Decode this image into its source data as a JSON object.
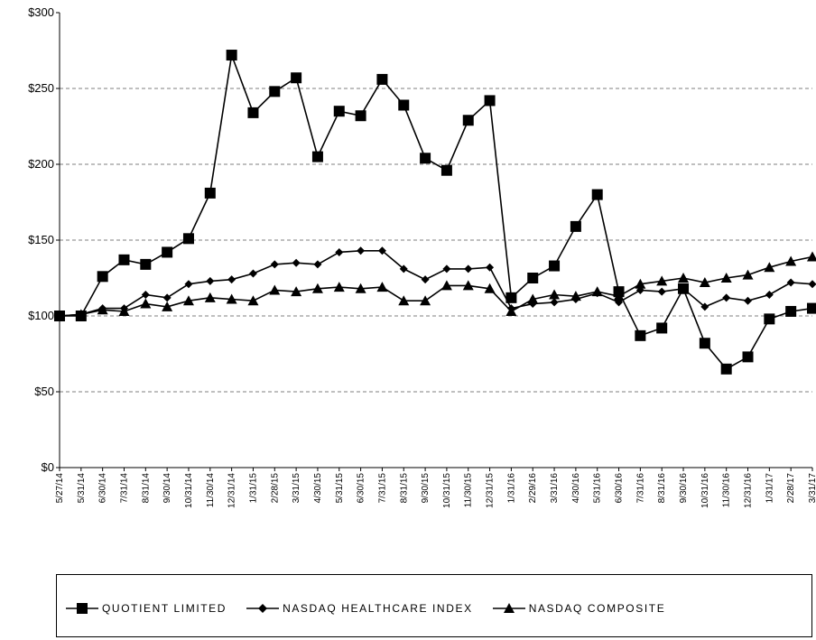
{
  "chart_data": {
    "type": "line",
    "title": "",
    "xlabel": "",
    "ylabel": "",
    "ylim": [
      0,
      300
    ],
    "yticks": [
      {
        "value": 0,
        "label": "$0"
      },
      {
        "value": 50,
        "label": "$50"
      },
      {
        "value": 100,
        "label": "$100"
      },
      {
        "value": 150,
        "label": "$150"
      },
      {
        "value": 200,
        "label": "$200"
      },
      {
        "value": 250,
        "label": "$250"
      },
      {
        "value": 300,
        "label": "$300"
      }
    ],
    "grid": true,
    "legend_position": "bottom",
    "categories": [
      "5/27/14",
      "5/31/14",
      "6/30/14",
      "7/31/14",
      "8/31/14",
      "9/30/14",
      "10/31/14",
      "11/30/14",
      "12/31/14",
      "1/31/15",
      "2/28/15",
      "3/31/15",
      "4/30/15",
      "5/31/15",
      "6/30/15",
      "7/31/15",
      "8/31/15",
      "9/30/15",
      "10/31/15",
      "11/30/15",
      "12/31/15",
      "1/31/16",
      "2/29/16",
      "3/31/16",
      "4/30/16",
      "5/31/16",
      "6/30/16",
      "7/31/16",
      "8/31/16",
      "9/30/16",
      "10/31/16",
      "11/30/16",
      "12/31/16",
      "1/31/17",
      "2/28/17",
      "3/31/17"
    ],
    "series": [
      {
        "name": "QUOTIENT LIMITED",
        "marker": "square",
        "values": [
          100,
          100,
          126,
          137,
          134,
          142,
          151,
          181,
          272,
          234,
          248,
          257,
          205,
          235,
          232,
          256,
          239,
          204,
          196,
          229,
          242,
          112,
          125,
          133,
          159,
          180,
          116,
          87,
          92,
          118,
          82,
          65,
          73,
          98,
          103,
          105
        ]
      },
      {
        "name": "NASDAQ HEALTHCARE INDEX",
        "marker": "diamond",
        "values": [
          100,
          101,
          105,
          105,
          114,
          112,
          121,
          123,
          124,
          128,
          134,
          135,
          134,
          142,
          143,
          143,
          131,
          124,
          131,
          131,
          132,
          105,
          108,
          109,
          111,
          115,
          109,
          117,
          116,
          118,
          106,
          112,
          110,
          114,
          122,
          121
        ]
      },
      {
        "name": "NASDAQ COMPOSITE",
        "marker": "triangle",
        "values": [
          100,
          101,
          104,
          103,
          108,
          106,
          110,
          112,
          111,
          110,
          117,
          116,
          118,
          119,
          118,
          119,
          110,
          110,
          120,
          120,
          118,
          103,
          111,
          114,
          113,
          116,
          113,
          121,
          123,
          125,
          122,
          125,
          127,
          132,
          136,
          139
        ]
      }
    ]
  }
}
